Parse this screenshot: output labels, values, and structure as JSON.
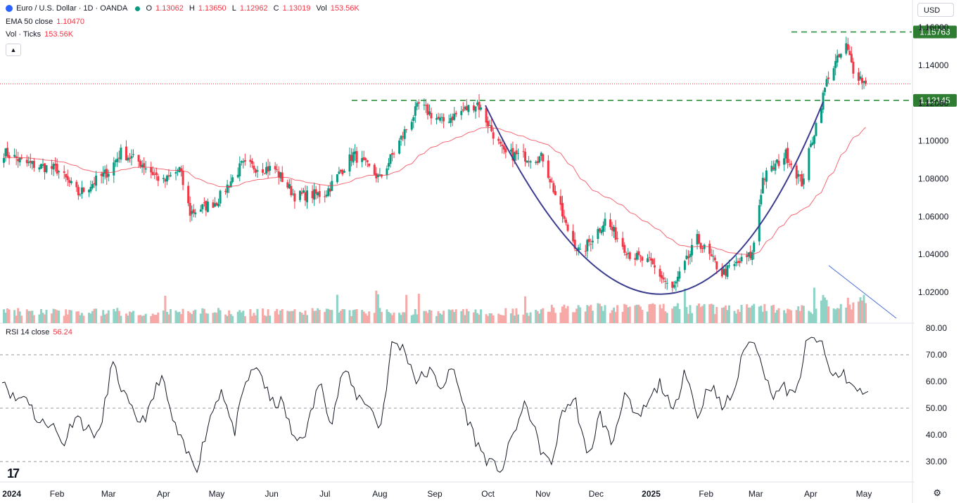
{
  "header": {
    "symbol": "Euro / U.S. Dollar · 1D · OANDA",
    "open_label": "O",
    "open": "1.13062",
    "high_label": "H",
    "high": "1.13650",
    "low_label": "L",
    "low": "1.12962",
    "close_label": "C",
    "close": "1.13019",
    "vol_label": "Vol",
    "vol": "153.56K",
    "ema_label": "EMA 50 close",
    "ema_value": "1.10470",
    "ticks_label": "Vol · Ticks",
    "ticks_value": "153.56K",
    "rsi_label": "RSI 14 close",
    "rsi_value": "56.24",
    "currency": "USD",
    "collapse_icon": "chevron-up-icon"
  },
  "colors": {
    "up": "#089981",
    "down": "#f23645",
    "ema": "#f23645",
    "rsi": "#131722",
    "level": "#1e8a2f",
    "curve": "#3b3b8f",
    "trend": "#4a6fd9"
  },
  "chart_data": [
    {
      "type": "candlestick",
      "instrument": "EURUSD",
      "interval": "1D",
      "ylim": [
        1.005,
        1.163
      ],
      "y_ticks": [
        "1.16000",
        "1.14000",
        "1.12000",
        "1.10000",
        "1.08000",
        "1.06000",
        "1.04000",
        "1.02000"
      ],
      "x_tick_labels": [
        "2024",
        "Feb",
        "Mar",
        "Apr",
        "May",
        "Jun",
        "Jul",
        "Aug",
        "Sep",
        "Oct",
        "Nov",
        "Dec",
        "2025",
        "Feb",
        "Mar",
        "Apr",
        "May"
      ],
      "approx_close_path": [
        [
          "2024-01-02",
          1.094
        ],
        [
          "2024-01-15",
          1.088
        ],
        [
          "2024-02-01",
          1.085
        ],
        [
          "2024-02-13",
          1.072
        ],
        [
          "2024-03-01",
          1.084
        ],
        [
          "2024-03-08",
          1.094
        ],
        [
          "2024-03-20",
          1.088
        ],
        [
          "2024-04-01",
          1.078
        ],
        [
          "2024-04-10",
          1.085
        ],
        [
          "2024-04-16",
          1.062
        ],
        [
          "2024-05-01",
          1.068
        ],
        [
          "2024-05-15",
          1.087
        ],
        [
          "2024-06-03",
          1.085
        ],
        [
          "2024-06-14",
          1.071
        ],
        [
          "2024-07-01",
          1.072
        ],
        [
          "2024-07-17",
          1.093
        ],
        [
          "2024-08-01",
          1.08
        ],
        [
          "2024-08-23",
          1.119
        ],
        [
          "2024-09-05",
          1.11
        ],
        [
          "2024-09-25",
          1.12
        ],
        [
          "2024-10-10",
          1.093
        ],
        [
          "2024-11-01",
          1.091
        ],
        [
          "2024-11-14",
          1.055
        ],
        [
          "2024-11-22",
          1.04
        ],
        [
          "2024-12-06",
          1.058
        ],
        [
          "2024-12-20",
          1.04
        ],
        [
          "2025-01-01",
          1.035
        ],
        [
          "2025-01-13",
          1.021
        ],
        [
          "2025-01-27",
          1.048
        ],
        [
          "2025-02-10",
          1.03
        ],
        [
          "2025-02-27",
          1.04
        ],
        [
          "2025-03-05",
          1.08
        ],
        [
          "2025-03-18",
          1.093
        ],
        [
          "2025-03-27",
          1.078
        ],
        [
          "2025-04-03",
          1.105
        ],
        [
          "2025-04-11",
          1.135
        ],
        [
          "2025-04-21",
          1.15
        ],
        [
          "2025-04-25",
          1.138
        ],
        [
          "2025-05-02",
          1.13
        ]
      ],
      "ema50_last": 1.1047,
      "price_levels": [
        {
          "value": 1.15763,
          "label": "1.15763"
        },
        {
          "value": 1.12145,
          "label": "1.12145"
        }
      ],
      "annotations": [
        "rounded-bottom-curve",
        "volume-descending-trendline"
      ]
    },
    {
      "type": "line",
      "name": "RSI 14 close",
      "ylim": [
        25,
        82
      ],
      "y_ticks": [
        "80.00",
        "70.00",
        "60.00",
        "50.00",
        "40.00",
        "30.00"
      ],
      "reference_lines": [
        70,
        50,
        30
      ],
      "approx_values": [
        62,
        53,
        55,
        44,
        45,
        36,
        48,
        42,
        40,
        67,
        55,
        45,
        48,
        63,
        45,
        34,
        28,
        46,
        58,
        40,
        60,
        66,
        52,
        52,
        37,
        42,
        60,
        45,
        65,
        55,
        52,
        42,
        75,
        72,
        60,
        64,
        58,
        65,
        48,
        36,
        29,
        27,
        42,
        52,
        36,
        28,
        50,
        53,
        30,
        48,
        36,
        56,
        45,
        52,
        60,
        47,
        66,
        46,
        60,
        50,
        56,
        75,
        73,
        55,
        58,
        54,
        75,
        76,
        62,
        63,
        56,
        56
      ]
    }
  ]
}
